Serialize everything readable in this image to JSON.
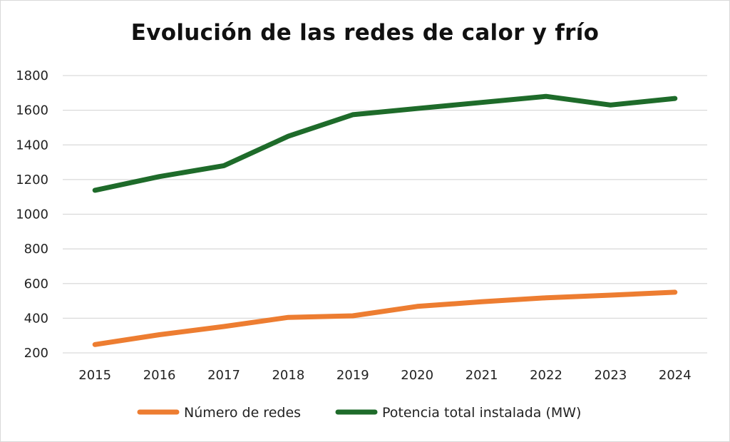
{
  "chart_data": {
    "type": "line",
    "title": "Evolución de las redes de calor y frío",
    "xlabel": "",
    "ylabel": "",
    "categories": [
      "2015",
      "2016",
      "2017",
      "2018",
      "2019",
      "2020",
      "2021",
      "2022",
      "2023",
      "2024"
    ],
    "ylim": [
      200,
      1800
    ],
    "yticks": [
      "200",
      "400",
      "600",
      "800",
      "1000",
      "1200",
      "1400",
      "1600",
      "1800"
    ],
    "grid": true,
    "legend_position": "bottom",
    "series": [
      {
        "name": "Número de redes",
        "color": "#ED7D31",
        "values": [
          248,
          305,
          352,
          405,
          414,
          468,
          495,
          518,
          533,
          550
        ]
      },
      {
        "name": "Potencia total instalada (MW)",
        "color": "#1E6B2A",
        "values": [
          1138,
          1217,
          1280,
          1450,
          1574,
          1610,
          1645,
          1680,
          1630,
          1668
        ]
      }
    ]
  }
}
